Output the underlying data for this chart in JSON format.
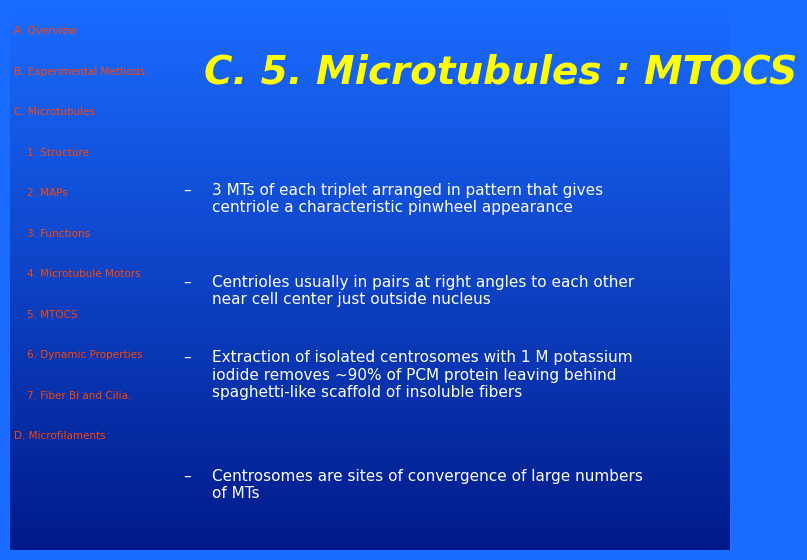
{
  "bg_color_top": "#1a6bff",
  "bg_color_bottom": "#001a8a",
  "title": "C. 5. Microtubules : MTOCS",
  "title_color": "#ffff00",
  "title_fontsize": 28,
  "nav_items": [
    {
      "text": "A. Overview",
      "indent": 0
    },
    {
      "text": "B. Experimental Methods",
      "indent": 0
    },
    {
      "text": "C. Microtubules",
      "indent": 0
    },
    {
      "text": "1. Structure",
      "indent": 1
    },
    {
      "text": "2. MAPs",
      "indent": 1
    },
    {
      "text": "3. Functions",
      "indent": 1
    },
    {
      "text": "4. Microtubule Motors",
      "indent": 1
    },
    {
      "text": "5. MTOCS",
      "indent": 1
    },
    {
      "text": "6. Dynamic Properties",
      "indent": 1
    },
    {
      "text": "7. Fiber Bi and Cilia.",
      "indent": 1
    },
    {
      "text": "D. Microfilaments",
      "indent": 0
    }
  ],
  "nav_color": "#ff4400",
  "nav_fontsize": 7.5,
  "bullet_points": [
    "3 MTs of each triplet arranged in pattern that gives\ncentriole a characteristic pinwheel appearance",
    "Centrioles usually in pairs at right angles to each other\nnear cell center just outside nucleus",
    "Extraction of isolated centrosomes with 1 M potassium\niodide removes ~90% of PCM protein leaving behind\nspaghetti-like scaffold of insoluble fibers",
    "Centrosomes are sites of convergence of large numbers\nof MTs"
  ],
  "bullet_color": "#ffffff",
  "bullet_fontsize": 11,
  "bullet_dash": "–"
}
